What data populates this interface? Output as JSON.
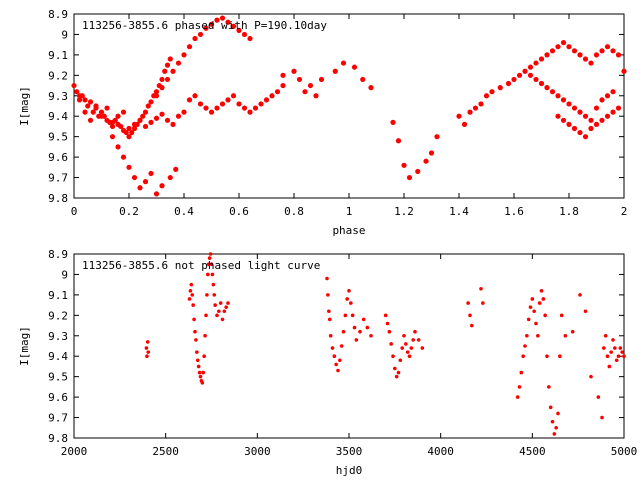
{
  "chart_data": [
    {
      "type": "scatter",
      "title": "113256-3855.6 phased with P=190.10day",
      "xlabel": "phase",
      "ylabel": "I[mag]",
      "xlim": [
        0,
        2
      ],
      "ylim": [
        9.8,
        8.9
      ],
      "y_inverted": true,
      "x_ticks": [
        "0",
        "0.2",
        "0.4",
        "0.6",
        "0.8",
        "1",
        "1.2",
        "1.4",
        "1.6",
        "1.8",
        "2"
      ],
      "y_ticks": [
        "8.9",
        "9",
        "9.1",
        "9.2",
        "9.3",
        "9.4",
        "9.5",
        "9.6",
        "9.7",
        "9.8"
      ],
      "grid": false,
      "marker_color": "#ff0000",
      "series": [
        {
          "x": [
            0.0,
            0.01,
            0.02,
            0.03,
            0.04,
            0.05,
            0.06,
            0.07,
            0.08,
            0.09,
            0.1,
            0.11,
            0.12,
            0.13,
            0.14,
            0.15,
            0.16,
            0.17,
            0.18,
            0.19,
            0.2,
            0.21,
            0.22,
            0.23,
            0.24,
            0.25,
            0.26,
            0.27,
            0.28,
            0.29,
            0.3,
            0.31,
            0.32,
            0.33,
            0.34,
            0.35,
            0.02,
            0.04,
            0.06,
            0.08,
            0.1,
            0.12,
            0.14,
            0.16,
            0.18,
            0.2,
            0.22,
            0.24,
            0.26,
            0.28,
            0.3,
            0.32,
            0.34,
            0.36,
            0.38,
            0.4,
            0.14,
            0.16,
            0.18,
            0.2,
            0.22,
            0.24,
            0.26,
            0.28,
            0.3,
            0.32,
            0.35,
            0.37,
            0.3,
            0.32,
            0.34,
            0.36,
            0.38,
            0.4,
            0.42,
            0.44,
            0.46,
            0.48,
            0.5,
            0.52,
            0.54,
            0.56,
            0.58,
            0.6,
            0.62,
            0.64,
            0.42,
            0.44,
            0.46,
            0.48,
            0.5,
            0.52,
            0.54,
            0.56,
            0.58,
            0.6,
            0.62,
            0.64,
            0.66,
            0.68,
            0.7,
            0.72,
            0.74,
            0.76,
            0.76,
            0.8,
            0.82,
            0.84,
            0.86,
            0.88,
            0.9,
            0.95,
            0.98,
            1.02,
            1.05,
            1.08,
            1.16,
            1.18,
            1.2,
            1.22,
            1.25,
            1.28,
            1.3,
            1.32,
            1.4,
            1.42,
            1.44,
            1.46,
            1.48,
            1.5,
            1.52,
            1.55,
            1.58,
            1.6,
            1.62,
            1.64,
            1.66,
            1.68,
            1.7,
            1.72,
            1.74,
            1.76,
            1.78,
            1.8,
            1.82,
            1.84,
            1.86,
            1.88,
            1.9,
            1.92,
            1.94,
            1.96,
            1.98,
            2.0,
            1.66,
            1.68,
            1.7,
            1.72,
            1.74,
            1.76,
            1.78,
            1.8,
            1.82,
            1.84,
            1.86,
            1.88,
            1.9,
            1.92,
            1.94,
            1.96,
            1.76,
            1.78,
            1.8,
            1.82,
            1.84,
            1.86,
            1.88,
            1.9,
            1.92,
            1.94,
            1.96,
            1.98
          ],
          "y": [
            9.25,
            9.28,
            9.3,
            9.3,
            9.32,
            9.35,
            9.33,
            9.38,
            9.36,
            9.4,
            9.38,
            9.4,
            9.42,
            9.43,
            9.45,
            9.42,
            9.44,
            9.45,
            9.47,
            9.48,
            9.5,
            9.48,
            9.46,
            9.44,
            9.42,
            9.4,
            9.38,
            9.35,
            9.33,
            9.3,
            9.28,
            9.25,
            9.22,
            9.18,
            9.15,
            9.12,
            9.32,
            9.38,
            9.42,
            9.35,
            9.4,
            9.36,
            9.43,
            9.4,
            9.38,
            9.46,
            9.44,
            9.42,
            9.45,
            9.43,
            9.41,
            9.39,
            9.42,
            9.44,
            9.4,
            9.38,
            9.5,
            9.55,
            9.6,
            9.65,
            9.7,
            9.75,
            9.72,
            9.68,
            9.78,
            9.74,
            9.7,
            9.66,
            9.3,
            9.26,
            9.22,
            9.18,
            9.14,
            9.1,
            9.06,
            9.02,
            9.0,
            8.97,
            8.95,
            8.93,
            8.92,
            8.94,
            8.96,
            8.98,
            9.0,
            9.02,
            9.32,
            9.3,
            9.34,
            9.36,
            9.38,
            9.36,
            9.34,
            9.32,
            9.3,
            9.34,
            9.36,
            9.38,
            9.36,
            9.34,
            9.32,
            9.3,
            9.28,
            9.25,
            9.2,
            9.18,
            9.22,
            9.28,
            9.25,
            9.3,
            9.22,
            9.18,
            9.14,
            9.16,
            9.22,
            9.26,
            9.43,
            9.52,
            9.64,
            9.7,
            9.67,
            9.62,
            9.58,
            9.5,
            9.4,
            9.44,
            9.38,
            9.36,
            9.34,
            9.3,
            9.28,
            9.26,
            9.24,
            9.22,
            9.2,
            9.18,
            9.16,
            9.14,
            9.12,
            9.1,
            9.08,
            9.06,
            9.04,
            9.06,
            9.08,
            9.1,
            9.12,
            9.14,
            9.1,
            9.08,
            9.06,
            9.08,
            9.1,
            9.18,
            9.2,
            9.22,
            9.24,
            9.26,
            9.28,
            9.3,
            9.32,
            9.34,
            9.36,
            9.38,
            9.4,
            9.42,
            9.36,
            9.32,
            9.3,
            9.28,
            9.4,
            9.42,
            9.44,
            9.46,
            9.48,
            9.5,
            9.46,
            9.44,
            9.42,
            9.4,
            9.38,
            9.36
          ]
        }
      ]
    },
    {
      "type": "scatter",
      "title": "113256-3855.6 not phased light curve",
      "xlabel": "hjd0",
      "ylabel": "I[mag]",
      "xlim": [
        2000,
        5000
      ],
      "ylim": [
        9.8,
        8.9
      ],
      "y_inverted": true,
      "x_ticks": [
        "2000",
        "2500",
        "3000",
        "3500",
        "4000",
        "4500",
        "5000"
      ],
      "y_ticks": [
        "8.9",
        "9",
        "9.1",
        "9.2",
        "9.3",
        "9.4",
        "9.5",
        "9.6",
        "9.7",
        "9.8"
      ],
      "grid": false,
      "marker_color": "#ff0000",
      "series": [
        {
          "x": [
            2395,
            2398,
            2402,
            2405,
            2630,
            2635,
            2640,
            2645,
            2650,
            2655,
            2660,
            2665,
            2670,
            2675,
            2680,
            2685,
            2690,
            2695,
            2700,
            2705,
            2710,
            2715,
            2720,
            2725,
            2730,
            2735,
            2740,
            2745,
            2750,
            2755,
            2760,
            2765,
            2770,
            2780,
            2790,
            2800,
            2810,
            2820,
            2830,
            2840,
            3380,
            3385,
            3390,
            3395,
            3400,
            3410,
            3420,
            3430,
            3440,
            3450,
            3460,
            3470,
            3480,
            3490,
            3500,
            3510,
            3520,
            3530,
            3540,
            3560,
            3580,
            3600,
            3620,
            3700,
            3710,
            3720,
            3730,
            3740,
            3750,
            3760,
            3770,
            3780,
            3790,
            3800,
            3810,
            3820,
            3830,
            3840,
            3850,
            3860,
            3880,
            3900,
            4150,
            4160,
            4170,
            4220,
            4230,
            4420,
            4430,
            4440,
            4450,
            4460,
            4470,
            4480,
            4490,
            4500,
            4510,
            4520,
            4530,
            4540,
            4550,
            4560,
            4570,
            4580,
            4590,
            4600,
            4610,
            4620,
            4630,
            4640,
            4650,
            4660,
            4680,
            4720,
            4760,
            4790,
            4820,
            4860,
            4880,
            4890,
            4900,
            4910,
            4920,
            4930,
            4940,
            4950,
            4960,
            4970,
            4980,
            4990,
            5000
          ],
          "y": [
            9.36,
            9.4,
            9.33,
            9.38,
            9.12,
            9.08,
            9.05,
            9.1,
            9.15,
            9.22,
            9.28,
            9.32,
            9.38,
            9.42,
            9.45,
            9.48,
            9.5,
            9.52,
            9.53,
            9.48,
            9.4,
            9.3,
            9.2,
            9.1,
            9.0,
            8.95,
            8.92,
            8.9,
            8.95,
            9.0,
            9.05,
            9.1,
            9.15,
            9.2,
            9.18,
            9.14,
            9.22,
            9.18,
            9.16,
            9.14,
            9.02,
            9.1,
            9.18,
            9.22,
            9.3,
            9.36,
            9.4,
            9.44,
            9.47,
            9.42,
            9.35,
            9.28,
            9.2,
            9.12,
            9.08,
            9.14,
            9.2,
            9.26,
            9.32,
            9.28,
            9.22,
            9.26,
            9.3,
            9.2,
            9.24,
            9.28,
            9.34,
            9.4,
            9.46,
            9.5,
            9.48,
            9.42,
            9.36,
            9.3,
            9.34,
            9.38,
            9.4,
            9.36,
            9.32,
            9.28,
            9.32,
            9.36,
            9.14,
            9.2,
            9.25,
            9.07,
            9.14,
            9.6,
            9.55,
            9.48,
            9.4,
            9.35,
            9.3,
            9.22,
            9.16,
            9.12,
            9.18,
            9.24,
            9.3,
            9.14,
            9.08,
            9.12,
            9.2,
            9.4,
            9.55,
            9.65,
            9.72,
            9.78,
            9.75,
            9.68,
            9.4,
            9.2,
            9.3,
            9.28,
            9.1,
            9.18,
            9.5,
            9.6,
            9.7,
            9.36,
            9.3,
            9.4,
            9.45,
            9.38,
            9.32,
            9.36,
            9.42,
            9.4,
            9.36,
            9.38,
            9.4
          ]
        }
      ]
    }
  ]
}
